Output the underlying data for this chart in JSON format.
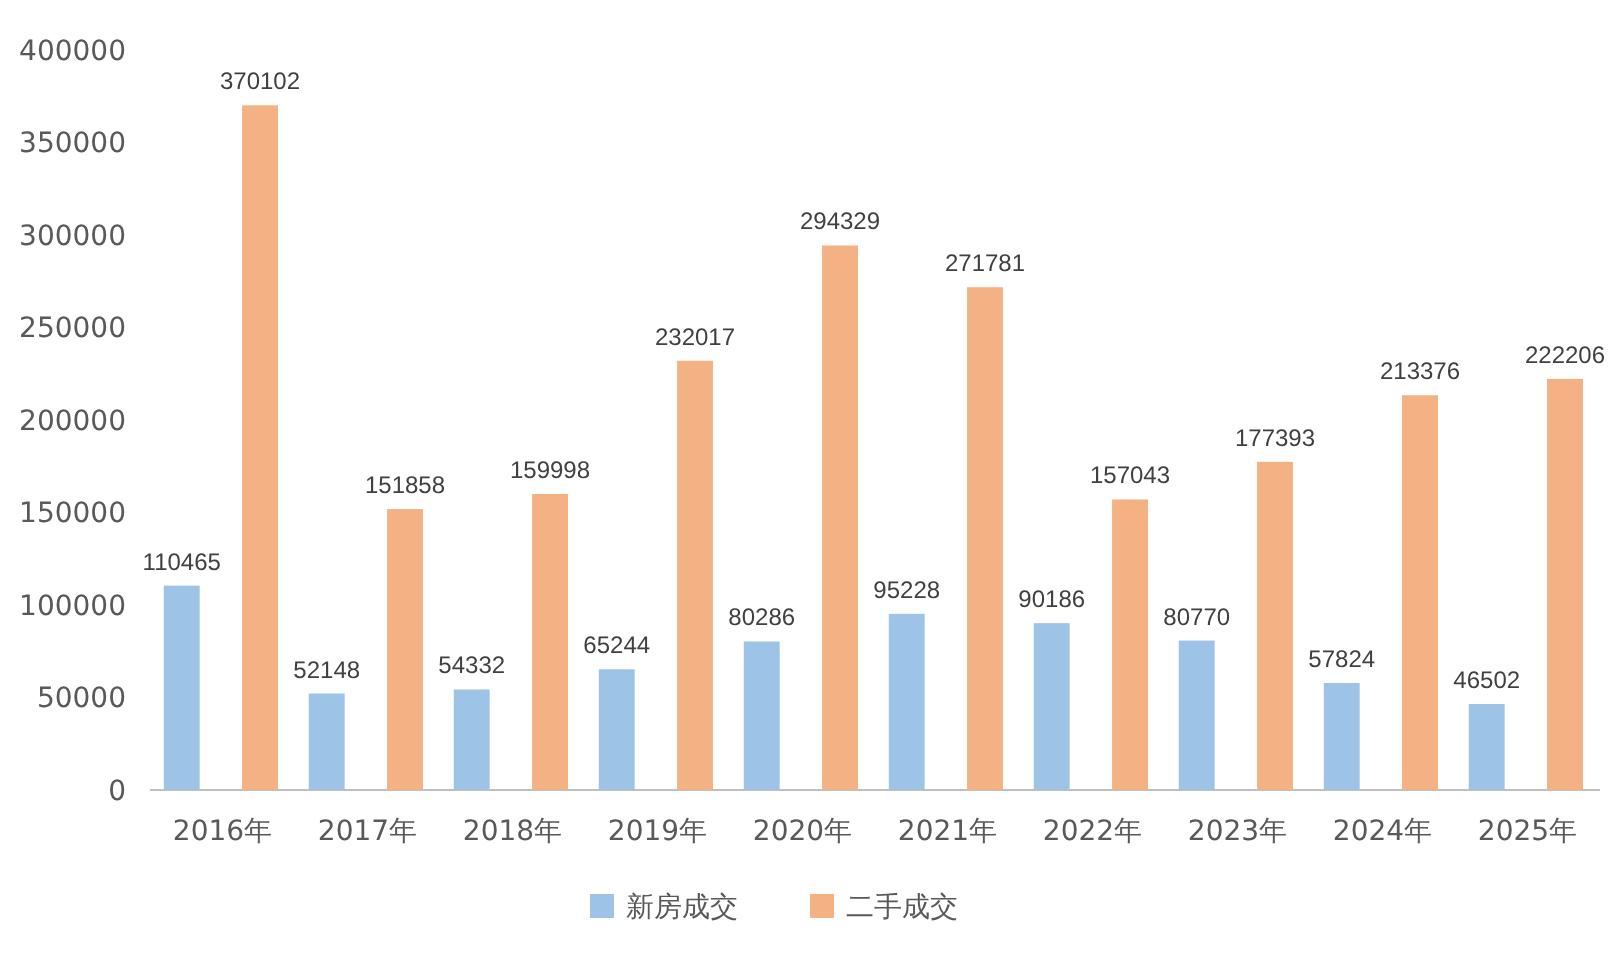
{
  "chart_data": {
    "type": "bar",
    "categories": [
      "2016年",
      "2017年",
      "2018年",
      "2019年",
      "2020年",
      "2021年",
      "2022年",
      "2023年",
      "2024年",
      "2025年"
    ],
    "series": [
      {
        "name": "新房成交",
        "color": "#9dc3e6",
        "values": [
          110465,
          52148,
          54332,
          65244,
          80286,
          95228,
          90186,
          80770,
          57824,
          46502
        ]
      },
      {
        "name": "二手成交",
        "color": "#f4b183",
        "values": [
          370102,
          151858,
          159998,
          232017,
          294329,
          271781,
          157043,
          177393,
          213376,
          222206
        ]
      }
    ],
    "ylim": [
      0,
      400000
    ],
    "yticks": [
      0,
      50000,
      100000,
      150000,
      200000,
      250000,
      300000,
      350000,
      400000
    ],
    "grid": false,
    "legend": "bottom",
    "data_labels": true
  }
}
